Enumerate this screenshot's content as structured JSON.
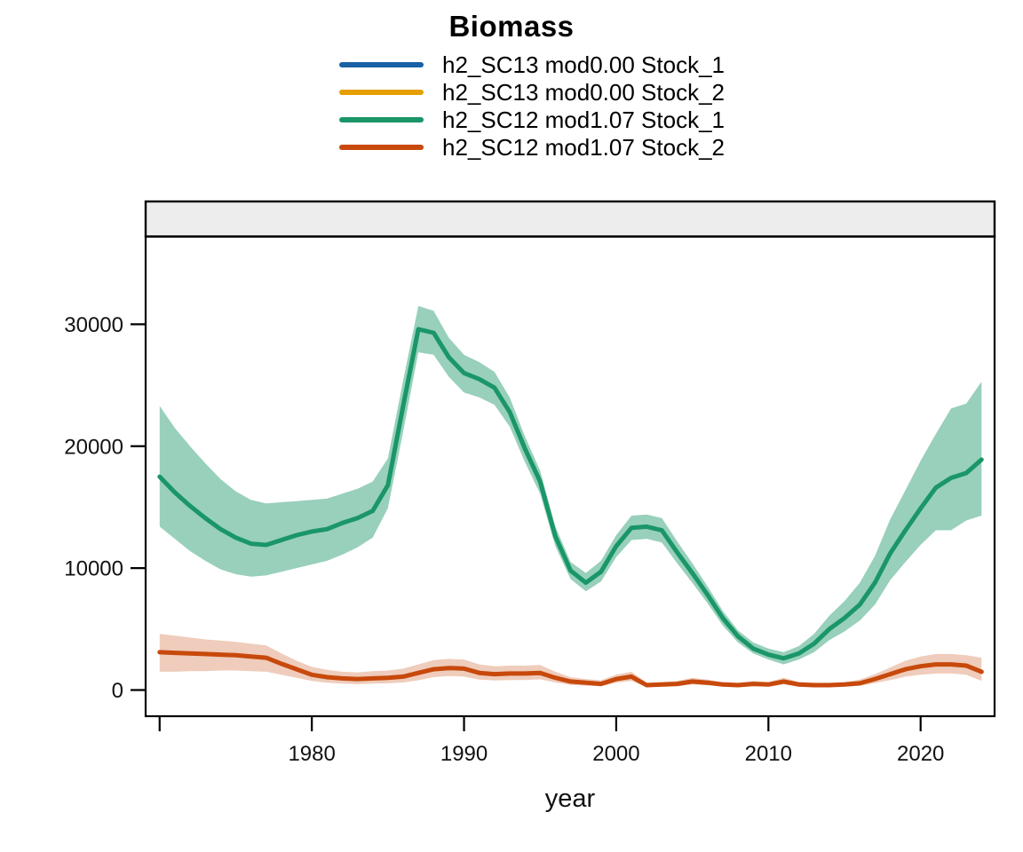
{
  "figure": {
    "title": "Biomass"
  },
  "legend": {
    "items": [
      {
        "label": "h2_SC13 mod0.00 Stock_1",
        "color": "#1862A5"
      },
      {
        "label": "h2_SC13 mod0.00 Stock_2",
        "color": "#E69F00"
      },
      {
        "label": "h2_SC12 mod1.07 Stock_1",
        "color": "#1A9668"
      },
      {
        "label": "h2_SC12 mod1.07 Stock_2",
        "color": "#C7490B"
      }
    ]
  },
  "chart_data": {
    "type": "line",
    "title": "Biomass",
    "xlabel": "year",
    "ylabel": "",
    "grid": false,
    "legend_position": "top",
    "facet_strip": {
      "label": "",
      "fill": "#EDEDED"
    },
    "xlim": [
      1969.08,
      2024.86
    ],
    "ylim": [
      -2150,
      37200
    ],
    "xticks": [
      1970,
      1980,
      1990,
      2000,
      2010,
      2020
    ],
    "xtick_labels": [
      "",
      "1980",
      "1990",
      "2000",
      "2010",
      "2020"
    ],
    "yticks": [
      0,
      10000,
      20000,
      30000
    ],
    "x": [
      1970,
      1971,
      1972,
      1973,
      1974,
      1975,
      1976,
      1977,
      1978,
      1979,
      1980,
      1981,
      1982,
      1983,
      1984,
      1985,
      1986,
      1987,
      1988,
      1989,
      1990,
      1991,
      1992,
      1993,
      1994,
      1995,
      1996,
      1997,
      1998,
      1999,
      2000,
      2001,
      2002,
      2003,
      2004,
      2005,
      2006,
      2007,
      2008,
      2009,
      2010,
      2011,
      2012,
      2013,
      2014,
      2015,
      2016,
      2017,
      2018,
      2019,
      2020,
      2021,
      2022,
      2023,
      2024
    ],
    "series": [
      {
        "name": "h2_SC12 mod1.07 Stock_1",
        "color": "#1A9668",
        "ribbon_alpha": 0.45,
        "values": [
          17500,
          16200,
          15100,
          14100,
          13200,
          12500,
          12000,
          11900,
          12300,
          12700,
          13000,
          13200,
          13700,
          14100,
          14700,
          16800,
          23300,
          29600,
          29300,
          27300,
          26000,
          25500,
          24800,
          22800,
          19800,
          17100,
          12600,
          9800,
          8800,
          9700,
          11800,
          13300,
          13400,
          13100,
          11300,
          9600,
          7800,
          5900,
          4400,
          3400,
          2900,
          2600,
          3000,
          3800,
          5000,
          5900,
          7000,
          8800,
          11200,
          13100,
          14900,
          16600,
          17400,
          17800,
          18900
        ],
        "hi": [
          23300,
          21500,
          20000,
          18600,
          17300,
          16300,
          15600,
          15300,
          15400,
          15500,
          15600,
          15700,
          16100,
          16500,
          17100,
          19000,
          25400,
          31500,
          31100,
          28900,
          27500,
          26900,
          26100,
          24000,
          20800,
          18000,
          13400,
          10500,
          9600,
          10600,
          12700,
          14300,
          14400,
          14100,
          12200,
          10400,
          8500,
          6500,
          4900,
          3900,
          3400,
          3100,
          3600,
          4600,
          6100,
          7300,
          8800,
          11000,
          14000,
          16400,
          18800,
          21000,
          23100,
          23500,
          25300
        ],
        "lo": [
          13400,
          12400,
          11400,
          10600,
          9900,
          9500,
          9300,
          9400,
          9700,
          10000,
          10300,
          10600,
          11100,
          11700,
          12500,
          14900,
          21200,
          27700,
          27500,
          25700,
          24400,
          24000,
          23400,
          21600,
          18700,
          16100,
          11800,
          9100,
          8100,
          8900,
          10900,
          12300,
          12400,
          12100,
          10400,
          8800,
          7100,
          5300,
          3900,
          3000,
          2500,
          2100,
          2500,
          3100,
          4100,
          4800,
          5700,
          7000,
          9000,
          10500,
          11900,
          13100,
          13100,
          13900,
          14300
        ]
      },
      {
        "name": "h2_SC12 mod1.07 Stock_2",
        "color": "#C7490B",
        "ribbon_alpha": 0.28,
        "values": [
          3100,
          3050,
          3000,
          2950,
          2900,
          2850,
          2750,
          2650,
          2150,
          1700,
          1250,
          1050,
          950,
          900,
          950,
          1000,
          1100,
          1400,
          1700,
          1800,
          1750,
          1400,
          1300,
          1350,
          1350,
          1400,
          1000,
          700,
          600,
          500,
          900,
          1100,
          400,
          450,
          500,
          700,
          600,
          450,
          400,
          500,
          450,
          700,
          450,
          400,
          400,
          450,
          550,
          900,
          1300,
          1700,
          1950,
          2100,
          2100,
          2000,
          1500
        ],
        "hi": [
          4600,
          4450,
          4300,
          4150,
          4050,
          3950,
          3800,
          3650,
          3000,
          2400,
          1900,
          1650,
          1500,
          1450,
          1550,
          1600,
          1750,
          2100,
          2450,
          2550,
          2500,
          2100,
          1950,
          2000,
          2000,
          2050,
          1500,
          1050,
          900,
          800,
          1250,
          1500,
          600,
          650,
          750,
          1000,
          850,
          650,
          600,
          750,
          650,
          1000,
          650,
          600,
          600,
          650,
          850,
          1300,
          1850,
          2400,
          2750,
          2950,
          2950,
          2850,
          2650
        ],
        "lo": [
          1500,
          1500,
          1550,
          1550,
          1600,
          1600,
          1550,
          1500,
          1250,
          1000,
          750,
          600,
          520,
          480,
          520,
          550,
          620,
          800,
          1050,
          1150,
          1100,
          850,
          780,
          820,
          820,
          880,
          620,
          420,
          360,
          300,
          600,
          750,
          230,
          260,
          300,
          450,
          380,
          280,
          240,
          310,
          280,
          450,
          280,
          240,
          240,
          280,
          350,
          560,
          820,
          1100,
          1250,
          1350,
          1350,
          1250,
          750
        ]
      }
    ]
  }
}
